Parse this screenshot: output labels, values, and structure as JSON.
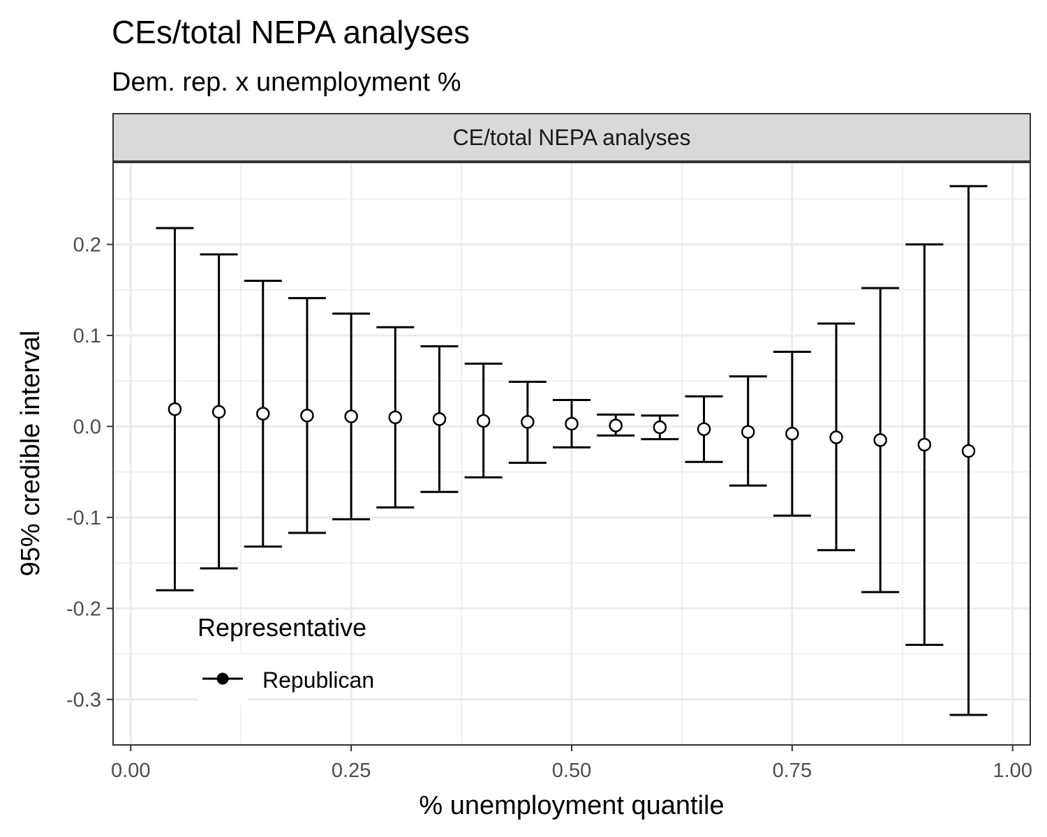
{
  "chart_data": {
    "type": "scatter",
    "title": "CEs/total NEPA analyses",
    "subtitle": "Dem. rep. x unemployment %",
    "facet_label": "CE/total NEPA analyses",
    "xlabel": "% unemployment quantile",
    "ylabel": "95% credible interval",
    "xlim": [
      -0.02,
      1.02
    ],
    "ylim": [
      -0.35,
      0.29
    ],
    "x_ticks": [
      0.0,
      0.25,
      0.5,
      0.75,
      1.0
    ],
    "x_tick_labels": [
      "0.00",
      "0.25",
      "0.50",
      "0.75",
      "1.00"
    ],
    "y_ticks": [
      0.2,
      0.1,
      0.0,
      -0.1,
      -0.2,
      -0.3
    ],
    "y_tick_labels": [
      "0.2",
      "0.1",
      "0.0",
      "-0.1",
      "-0.2",
      "-0.3"
    ],
    "grid": true,
    "legend": {
      "title": "Representative",
      "position": "bottom-left",
      "items": [
        "Republican"
      ]
    },
    "series": [
      {
        "name": "Republican",
        "color": "#000000",
        "point_fill": "#ffffff",
        "x": [
          0.05,
          0.1,
          0.15,
          0.2,
          0.25,
          0.3,
          0.35,
          0.4,
          0.45,
          0.5,
          0.55,
          0.6,
          0.65,
          0.7,
          0.75,
          0.8,
          0.85,
          0.9,
          0.95
        ],
        "y": [
          0.019,
          0.016,
          0.014,
          0.012,
          0.011,
          0.01,
          0.008,
          0.006,
          0.005,
          0.003,
          0.001,
          -0.001,
          -0.003,
          -0.006,
          -0.008,
          -0.012,
          -0.015,
          -0.02,
          -0.027
        ],
        "lower": [
          -0.18,
          -0.156,
          -0.132,
          -0.117,
          -0.102,
          -0.089,
          -0.072,
          -0.056,
          -0.04,
          -0.023,
          -0.01,
          -0.014,
          -0.039,
          -0.065,
          -0.098,
          -0.136,
          -0.182,
          -0.24,
          -0.317
        ],
        "upper": [
          0.218,
          0.189,
          0.16,
          0.141,
          0.124,
          0.109,
          0.088,
          0.069,
          0.049,
          0.029,
          0.013,
          0.012,
          0.033,
          0.055,
          0.082,
          0.113,
          0.152,
          0.2,
          0.264
        ]
      }
    ]
  }
}
